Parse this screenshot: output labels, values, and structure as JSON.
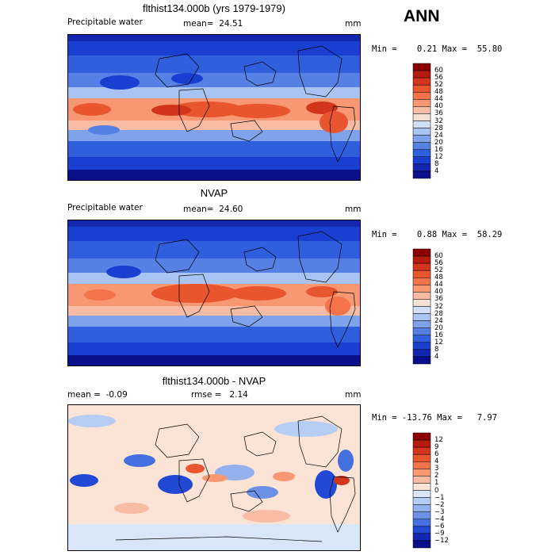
{
  "season": "ANN",
  "panels": [
    {
      "title": "flthist134.000b (yrs 1979-1979)",
      "left_label": "Precipitable water",
      "center_label": "mean=  24.51",
      "units": "mm",
      "minmax": "Min =    0.21 Max =  55.80",
      "colorbar_labels": [
        "60",
        "56",
        "52",
        "48",
        "44",
        "40",
        "36",
        "32",
        "28",
        "24",
        "20",
        "16",
        "12",
        "8",
        "4"
      ],
      "colorbar_colors": [
        "#8b0000",
        "#b41a0d",
        "#d2341c",
        "#e8552f",
        "#f4734b",
        "#f79873",
        "#f7bca3",
        "#f5e1d3",
        "#cfe0f7",
        "#a9c4f2",
        "#7fa2ea",
        "#5680e3",
        "#2f5fdd",
        "#1a3fd0",
        "#1226b0",
        "#0a0f8a"
      ]
    },
    {
      "title": "NVAP",
      "left_label": "Precipitable water",
      "center_label": "mean=  24.60",
      "units": "mm",
      "minmax": "Min =    0.88 Max =  58.29",
      "colorbar_labels": [
        "60",
        "56",
        "52",
        "48",
        "44",
        "40",
        "36",
        "32",
        "28",
        "24",
        "20",
        "16",
        "12",
        "8",
        "4"
      ],
      "colorbar_colors": [
        "#8b0000",
        "#b41a0d",
        "#d2341c",
        "#e8552f",
        "#f4734b",
        "#f79873",
        "#f7bca3",
        "#f5e1d3",
        "#cfe0f7",
        "#a9c4f2",
        "#7fa2ea",
        "#5680e3",
        "#2f5fdd",
        "#1a3fd0",
        "#1226b0",
        "#0a0f8a"
      ]
    },
    {
      "title": "flthist134.000b - NVAP",
      "left_label": "mean =  -0.09",
      "center_label": "rmse =   2.14",
      "units": "mm",
      "minmax": "Min = -13.76 Max =   7.97",
      "colorbar_labels": [
        "12",
        "9",
        "6",
        "4",
        "3",
        "2",
        "1",
        "0",
        "−1",
        "−2",
        "−3",
        "−4",
        "−6",
        "−9",
        "−12"
      ],
      "colorbar_colors": [
        "#8b0000",
        "#b41a0d",
        "#d2341c",
        "#e8552f",
        "#f4734b",
        "#f79873",
        "#f7bca3",
        "#fbe3d6",
        "#d9e6fa",
        "#b7cdf4",
        "#93b1ee",
        "#6b90e6",
        "#4470e0",
        "#2249d6",
        "#1228b4",
        "#0a0f8a"
      ]
    }
  ]
}
